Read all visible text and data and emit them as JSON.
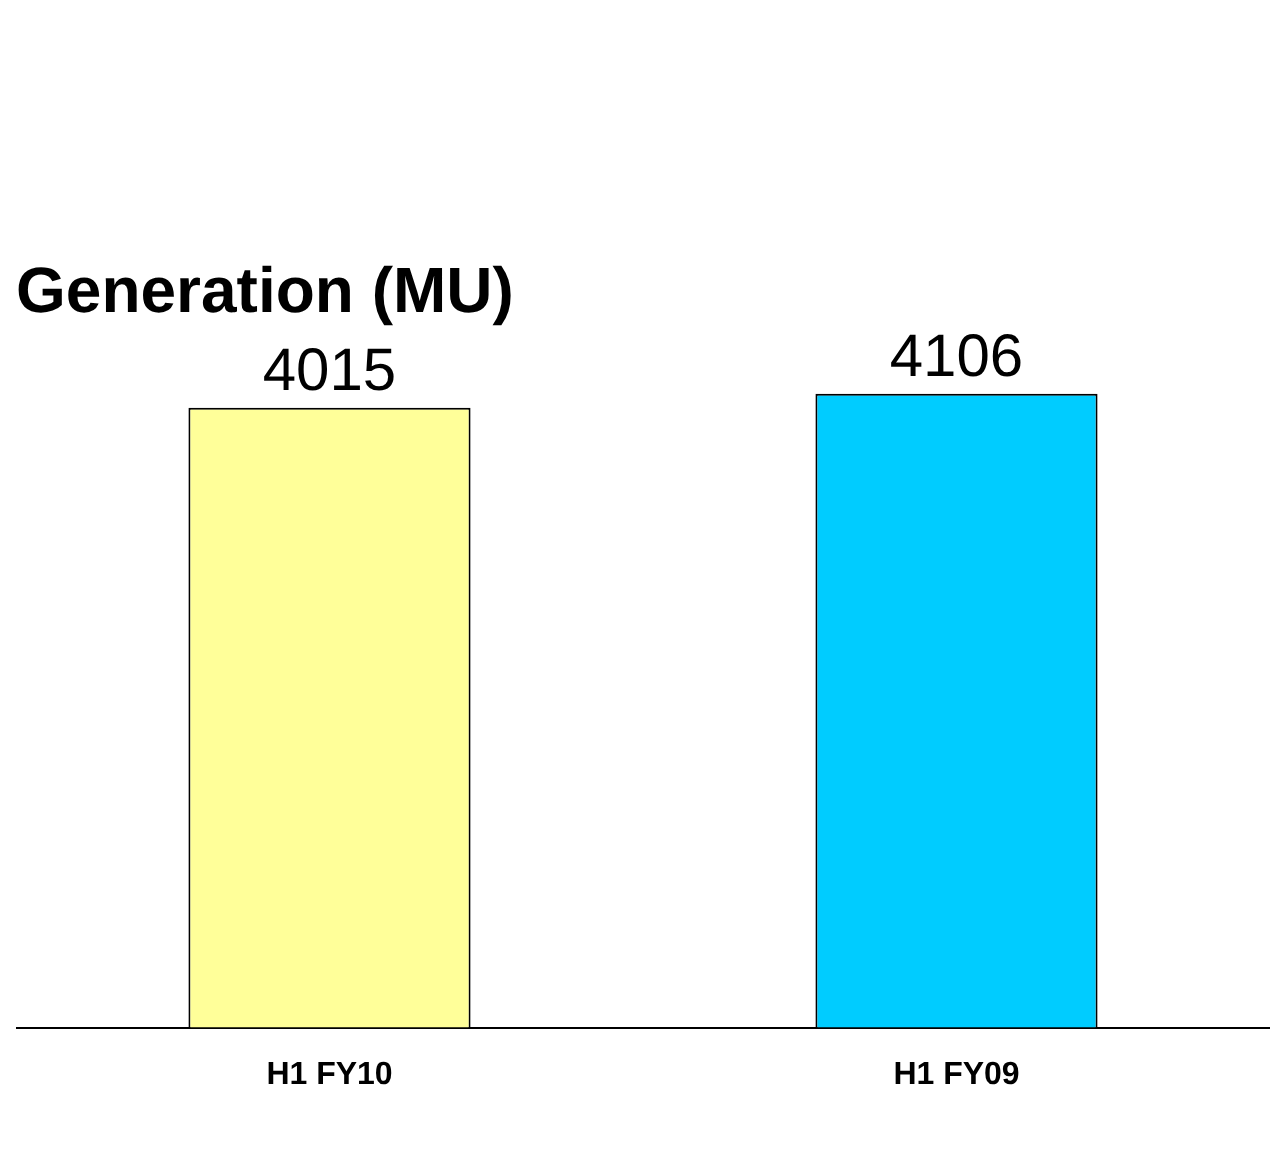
{
  "chart_data": {
    "type": "bar",
    "title": "Generation (MU)",
    "categories": [
      "H1 FY10",
      "H1 FY09"
    ],
    "values": [
      4015,
      4106
    ],
    "colors": [
      "#ffff99",
      "#00ccff"
    ],
    "data_labels": true,
    "grid": false,
    "legend": false
  }
}
